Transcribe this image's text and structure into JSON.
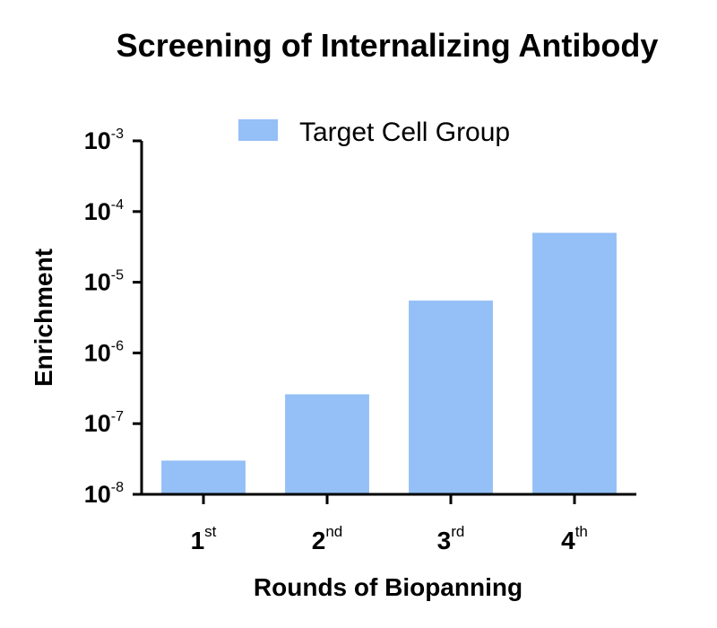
{
  "chart_data": {
    "type": "bar",
    "title": "Screening of Internalizing Antibody",
    "xlabel": "Rounds of Biopanning",
    "ylabel": "Enrichment",
    "yscale": "log",
    "ylim": [
      1e-08,
      0.001
    ],
    "y_ticks": [
      {
        "value": 0.001,
        "base": "10",
        "exp": "-3"
      },
      {
        "value": 0.0001,
        "base": "10",
        "exp": "-4"
      },
      {
        "value": 1e-05,
        "base": "10",
        "exp": "-5"
      },
      {
        "value": 1e-06,
        "base": "10",
        "exp": "-6"
      },
      {
        "value": 1e-07,
        "base": "10",
        "exp": "-7"
      },
      {
        "value": 1e-08,
        "base": "10",
        "exp": "-8"
      }
    ],
    "categories": [
      {
        "num": "1",
        "sup": "st"
      },
      {
        "num": "2",
        "sup": "nd"
      },
      {
        "num": "3",
        "sup": "rd"
      },
      {
        "num": "4",
        "sup": "th"
      }
    ],
    "series": [
      {
        "name": "Target Cell Group",
        "values": [
          3e-08,
          2.6e-07,
          5.5e-06,
          5e-05
        ],
        "color": "#94BFF7"
      }
    ],
    "legend": "top-center",
    "grid": false
  }
}
